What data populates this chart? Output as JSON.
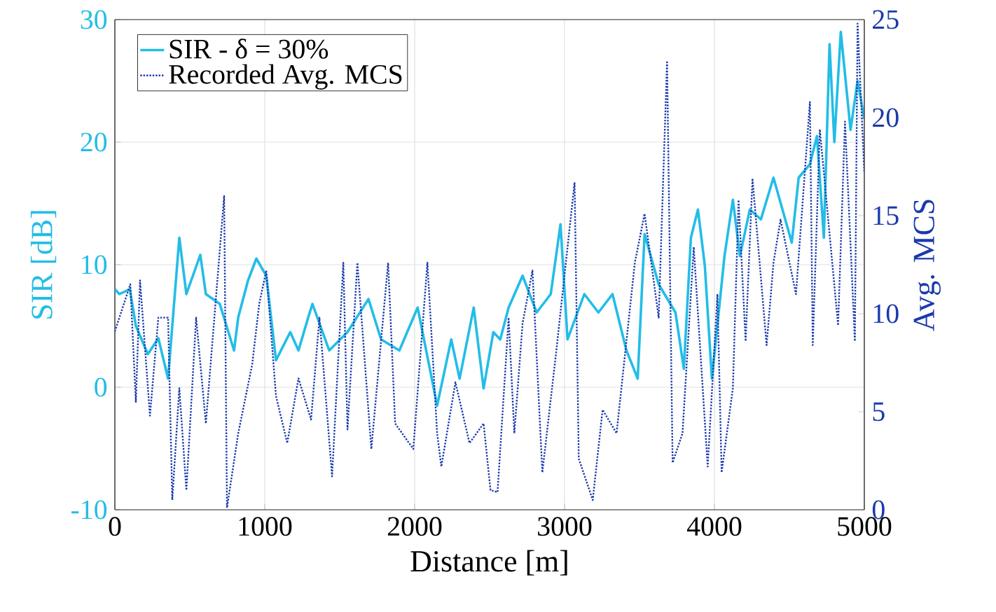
{
  "chart_data": {
    "type": "line",
    "xlabel": "Distance [m]",
    "ylabel": "SIR [dB]",
    "y2label": "Avg. MCS",
    "xlim": [
      0,
      5000
    ],
    "xticks": [
      0,
      1000,
      2000,
      3000,
      4000,
      5000
    ],
    "ylim": [
      -10,
      30
    ],
    "yticks": [
      -10,
      0,
      10,
      20,
      30
    ],
    "y2lim": [
      0,
      25
    ],
    "y2ticks": [
      0,
      5,
      10,
      15,
      20,
      25
    ],
    "grid": true,
    "legend": "top left",
    "series": [
      {
        "name": "SIR - δ = 30%",
        "color": "#23bde6",
        "line_style": "solid",
        "x": [
          0,
          30,
          100,
          140,
          220,
          290,
          355,
          430,
          477,
          570,
          607,
          700,
          795,
          823,
          888,
          944,
          1010,
          1075,
          1170,
          1225,
          1290,
          1318,
          1430,
          1552,
          1692,
          1776,
          1898,
          2020,
          2150,
          2244,
          2300,
          2394,
          2460,
          2525,
          2571,
          2627,
          2720,
          2814,
          2908,
          2973,
          3020,
          3132,
          3226,
          3320,
          3413,
          3488,
          3534,
          3628,
          3740,
          3796,
          3843,
          3890,
          3936,
          3983,
          4067,
          4123,
          4170,
          4236,
          4310,
          4394,
          4516,
          4562,
          4637,
          4684,
          4730,
          4768,
          4800,
          4843,
          4908,
          4955,
          5000
        ],
        "values": [
          8,
          7.6,
          8,
          5,
          2.7,
          4,
          0.7,
          12.2,
          7.6,
          10.8,
          7.6,
          6.8,
          3,
          5.7,
          8.7,
          10.5,
          9.1,
          2.2,
          4.5,
          3,
          5.7,
          6.8,
          3,
          4.5,
          7.2,
          3.9,
          3,
          6.5,
          -1.5,
          3.9,
          0.7,
          6.5,
          -0.1,
          4.5,
          3.9,
          6.5,
          9.1,
          6.1,
          7.6,
          13.3,
          3.9,
          7.6,
          6.1,
          7.6,
          3,
          0.7,
          12.5,
          8.4,
          6.1,
          1.5,
          12.2,
          14.5,
          9.9,
          0.7,
          10.7,
          15.3,
          10.7,
          14.5,
          13.7,
          17.1,
          11.8,
          17.1,
          18.2,
          20.5,
          12.2,
          28,
          20,
          29,
          21,
          25,
          21.9
        ]
      },
      {
        "name": "Recorded Avg. MCS",
        "color": "#1a3aab",
        "line_style": "dotted",
        "axis": "y2",
        "x": [
          0,
          103,
          140,
          168,
          234,
          290,
          355,
          383,
          430,
          477,
          542,
          607,
          729,
          748,
          823,
          916,
          963,
          1010,
          1075,
          1150,
          1225,
          1309,
          1365,
          1449,
          1524,
          1552,
          1618,
          1711,
          1823,
          1870,
          1991,
          2085,
          2150,
          2178,
          2272,
          2366,
          2460,
          2506,
          2553,
          2627,
          2665,
          2720,
          2786,
          2852,
          2945,
          3067,
          3095,
          3188,
          3254,
          3347,
          3469,
          3534,
          3628,
          3684,
          3721,
          3787,
          3862,
          3955,
          4020,
          4048,
          4123,
          4161,
          4208,
          4254,
          4348,
          4394,
          4441,
          4544,
          4637,
          4656,
          4703,
          4825,
          4871,
          4937,
          4955,
          5000
        ],
        "values": [
          9.1,
          11.5,
          5.5,
          11.7,
          4.8,
          9.8,
          9.8,
          0.5,
          6.2,
          1,
          9.8,
          4.4,
          16,
          0.1,
          3.9,
          7.4,
          10.5,
          12.2,
          5.8,
          3.4,
          6.7,
          4.6,
          9.8,
          1.7,
          12.6,
          4.1,
          12.6,
          3.1,
          12.6,
          4.4,
          3.1,
          12.6,
          3.9,
          2.2,
          6.5,
          3.4,
          4.4,
          1,
          0.9,
          9.8,
          3.9,
          9.5,
          12.2,
          1.9,
          8.1,
          16.7,
          2.6,
          0.5,
          5.1,
          3.9,
          12.6,
          15.1,
          9.8,
          22.9,
          2.4,
          3.9,
          13.4,
          2.2,
          11,
          1.9,
          6.2,
          15.8,
          8.6,
          16.9,
          8.4,
          12.6,
          14.8,
          11,
          20.8,
          8.4,
          19.4,
          9.4,
          19.8,
          8.6,
          24.8,
          17.2
        ]
      }
    ]
  }
}
